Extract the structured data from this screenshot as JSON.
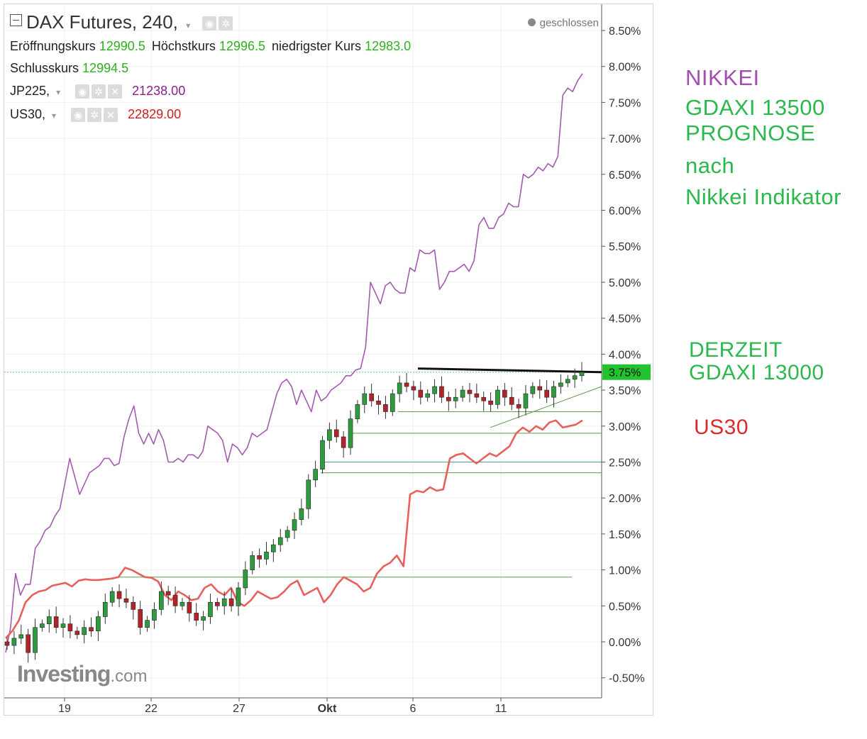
{
  "header": {
    "title": "DAX Futures, 240,",
    "status": "geschlossen",
    "open_label": "Eröffnungskurs",
    "open_value": "12990.5",
    "high_label": "Höchstkurs",
    "high_value": "12996.5",
    "low_label": "niedrigster Kurs",
    "low_value": "12983.0",
    "close_label": "Schlusskurs",
    "close_value": "12994.5",
    "overlay1_name": "JP225,",
    "overlay1_value": "21238.00",
    "overlay2_name": "US30,",
    "overlay2_value": "22829.00"
  },
  "watermark": {
    "brand": "Investing",
    "suffix": ".com"
  },
  "annotations": {
    "line1": "NIKKEI",
    "line2": "GDAXI 13500",
    "line3": "PROGNOSE",
    "line4": "nach",
    "line5": "Nikkei Indikator",
    "line6": "DERZEIT",
    "line7": "GDAXI 13000",
    "line8": "US30"
  },
  "colors": {
    "nikkei": "#a45ab0",
    "us30": "#e8605a",
    "up": "#2e9b3e",
    "down": "#b4232a",
    "annotation_purple": "#a24db1",
    "annotation_green": "#2db84d",
    "annotation_red": "#d92b2b",
    "price_tag": "#22c32f"
  },
  "chart_data": {
    "type": "line",
    "title": "DAX Futures, 240,",
    "y_axis": {
      "unit": "%",
      "ticks": [
        "8.50%",
        "8.00%",
        "7.50%",
        "7.00%",
        "6.50%",
        "6.00%",
        "5.50%",
        "5.00%",
        "4.50%",
        "4.00%",
        "3.50%",
        "3.00%",
        "2.50%",
        "2.00%",
        "1.50%",
        "1.00%",
        "0.50%",
        "0.00%",
        "-0.50%"
      ],
      "ylim": [
        -0.6,
        8.8
      ],
      "current_label": "3.75%"
    },
    "x_axis": {
      "tick_labels": [
        "19",
        "22",
        "27",
        "Okt",
        "6",
        "11"
      ]
    },
    "legend_placement": "top-left",
    "grid": true,
    "series": [
      {
        "name": "JP225",
        "values": [
          -0.15,
          0.2,
          0.95,
          0.65,
          0.8,
          0.8,
          1.3,
          1.4,
          1.55,
          1.6,
          1.75,
          1.85,
          2.2,
          2.55,
          2.3,
          2.05,
          2.2,
          2.35,
          2.4,
          2.45,
          2.55,
          2.55,
          2.45,
          2.48,
          2.85,
          3.1,
          3.28,
          2.9,
          2.75,
          2.9,
          2.75,
          2.95,
          2.8,
          2.5,
          2.5,
          2.55,
          2.5,
          2.6,
          2.6,
          2.55,
          2.65,
          3.0,
          2.95,
          2.9,
          2.8,
          2.5,
          2.75,
          2.7,
          2.6,
          2.7,
          2.9,
          2.85,
          2.9,
          2.95,
          3.2,
          3.45,
          3.6,
          3.65,
          3.55,
          3.3,
          3.5,
          3.35,
          3.2,
          3.5,
          3.35,
          3.4,
          3.5,
          3.55,
          3.6,
          3.7,
          3.7,
          3.78,
          3.8,
          4.1,
          5.0,
          4.85,
          4.7,
          4.95,
          5.0,
          4.9,
          4.85,
          4.85,
          5.2,
          5.15,
          5.45,
          5.4,
          5.4,
          5.45,
          4.9,
          5.0,
          5.15,
          5.15,
          5.2,
          5.25,
          5.15,
          5.3,
          5.8,
          5.9,
          5.75,
          5.75,
          5.9,
          5.95,
          6.1,
          6.05,
          6.05,
          6.5,
          6.45,
          6.5,
          6.6,
          6.55,
          6.65,
          6.6,
          6.75,
          7.6,
          7.7,
          7.65,
          7.8,
          7.9
        ]
      },
      {
        "name": "US30",
        "values": [
          0.05,
          0.15,
          0.3,
          0.55,
          0.65,
          0.7,
          0.72,
          0.78,
          0.8,
          0.82,
          0.77,
          0.85,
          0.87,
          0.86,
          0.86,
          0.87,
          0.88,
          0.9,
          1.03,
          1.0,
          0.95,
          0.9,
          0.89,
          0.84,
          0.65,
          0.58,
          0.7,
          0.65,
          0.58,
          0.6,
          0.75,
          0.8,
          0.7,
          0.65,
          0.75,
          0.55,
          0.5,
          0.58,
          0.7,
          0.65,
          0.6,
          0.62,
          0.7,
          0.8,
          0.85,
          0.65,
          0.7,
          0.75,
          0.55,
          0.65,
          0.8,
          0.9,
          0.85,
          0.8,
          0.7,
          0.75,
          0.95,
          1.05,
          1.1,
          1.2,
          1.05,
          2.05,
          2.1,
          2.08,
          2.15,
          2.1,
          2.12,
          2.55,
          2.6,
          2.62,
          2.55,
          2.48,
          2.55,
          2.62,
          2.58,
          2.65,
          2.72,
          2.9,
          2.98,
          2.92,
          3.0,
          2.95,
          3.05,
          3.08,
          2.98,
          3.0,
          3.02,
          3.08
        ]
      }
    ],
    "dax_candles_note": "candlestick DAX futures % change, rising from about -0.1% to 3.75%",
    "dax_close_percent": [
      -0.05,
      0.05,
      0.1,
      -0.15,
      0.2,
      0.25,
      0.35,
      0.2,
      0.25,
      0.15,
      0.1,
      0.2,
      0.15,
      0.35,
      0.55,
      0.7,
      0.6,
      0.55,
      0.45,
      0.2,
      0.3,
      0.45,
      0.7,
      0.65,
      0.5,
      0.55,
      0.4,
      0.3,
      0.35,
      0.55,
      0.5,
      0.6,
      0.5,
      0.75,
      1.0,
      1.2,
      1.15,
      1.25,
      1.35,
      1.45,
      1.55,
      1.7,
      1.85,
      2.25,
      2.4,
      2.8,
      2.95,
      2.85,
      2.7,
      3.1,
      3.3,
      3.45,
      3.35,
      3.3,
      3.2,
      3.45,
      3.6,
      3.55,
      3.5,
      3.4,
      3.45,
      3.55,
      3.4,
      3.35,
      3.4,
      3.5,
      3.45,
      3.4,
      3.35,
      3.3,
      3.5,
      3.4,
      3.3,
      3.25,
      3.45,
      3.55,
      3.5,
      3.4,
      3.55,
      3.6,
      3.65,
      3.7,
      3.75
    ]
  }
}
